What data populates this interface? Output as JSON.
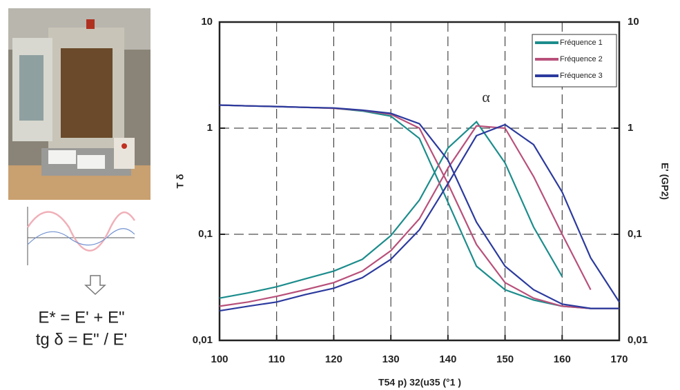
{
  "chart_data": {
    "type": "line",
    "log_y": true,
    "grid": true,
    "legend": "top-right",
    "x_label": "T54 p) 32(u35 (°1 )",
    "y_label": "T δ",
    "y2_label": "E' (GP2)",
    "annotations": [
      "α"
    ],
    "x": [
      100,
      105,
      110,
      115,
      120,
      125,
      130,
      135,
      140,
      145,
      150,
      155,
      160,
      165,
      170
    ],
    "xlim": [
      100,
      170
    ],
    "xticks": [
      100,
      110,
      120,
      130,
      140,
      150,
      160,
      170
    ],
    "ylim": [
      0.01,
      10
    ],
    "yticks": [
      10,
      1,
      {
        "value": 0.1,
        "label": "0,1"
      },
      {
        "value": 0.01,
        "label": "0,01"
      }
    ],
    "y2lim": [
      0.01,
      10
    ],
    "y2ticks": [
      10,
      1,
      {
        "value": 0.1,
        "label": "0,1"
      },
      {
        "value": 0.01,
        "label": "0,01"
      }
    ],
    "series": [
      {
        "name": "Fréquence 1",
        "color": "#1c8c8c",
        "values": [
          0.025,
          0.028,
          0.032,
          0.038,
          0.045,
          0.058,
          0.097,
          0.21,
          0.65,
          1.15,
          0.47,
          0.117,
          0.04,
          null,
          null
        ],
        "modulus": [
          1.65,
          1.62,
          1.6,
          1.57,
          1.54,
          1.45,
          1.3,
          0.8,
          0.2,
          0.05,
          0.03,
          0.024,
          0.021,
          0.02,
          0.02
        ]
      },
      {
        "name": "Fréquence 2",
        "color": "#b8507a",
        "values": [
          0.021,
          0.023,
          0.026,
          0.03,
          0.035,
          0.045,
          0.07,
          0.14,
          0.42,
          1.05,
          1.0,
          0.35,
          0.1,
          0.03,
          null
        ],
        "modulus": [
          1.65,
          1.62,
          1.6,
          1.57,
          1.54,
          1.47,
          1.35,
          1.0,
          0.3,
          0.08,
          0.035,
          0.025,
          0.021,
          0.02,
          0.02
        ]
      },
      {
        "name": "Fréquence 3",
        "color": "#2b3a9e",
        "values": [
          0.019,
          0.021,
          0.023,
          0.027,
          0.031,
          0.039,
          0.058,
          0.11,
          0.3,
          0.85,
          1.08,
          0.7,
          0.25,
          0.06,
          0.023
        ],
        "modulus": [
          1.65,
          1.62,
          1.6,
          1.57,
          1.55,
          1.48,
          1.38,
          1.1,
          0.5,
          0.13,
          0.05,
          0.03,
          0.022,
          0.02,
          0.02
        ]
      }
    ]
  },
  "formulas": [
    "E*  = E' +   E\"",
    "tg δ = E\" / E'"
  ]
}
